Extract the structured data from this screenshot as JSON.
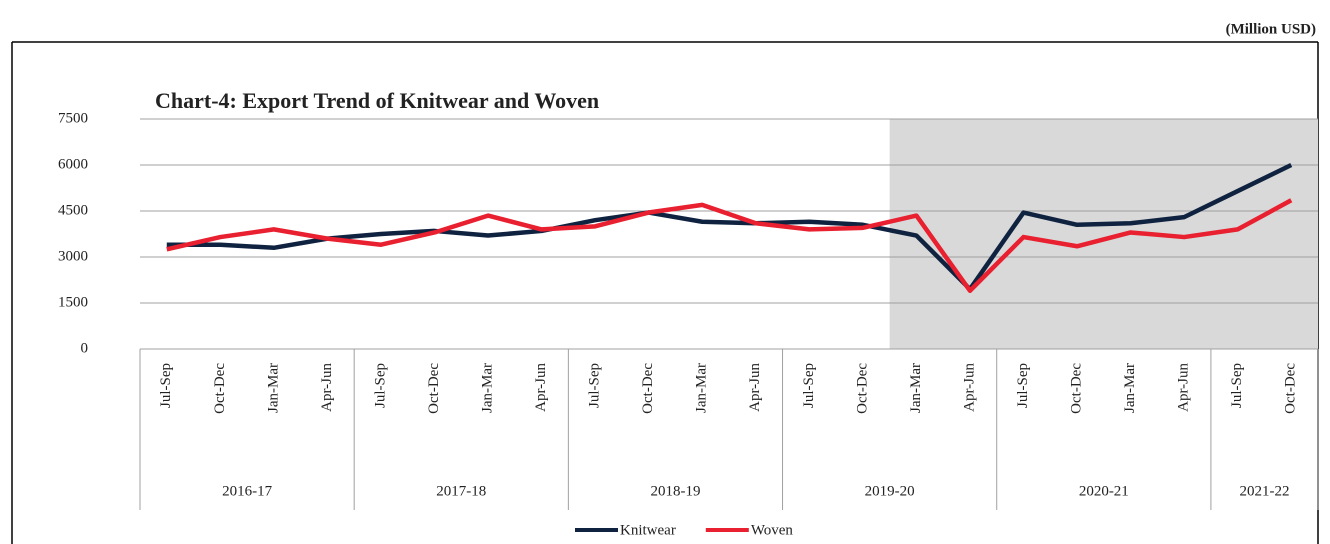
{
  "chart_data": {
    "type": "line",
    "unit_note": "(Million USD)",
    "title": "Chart-4: Export Trend of Knitwear and Woven",
    "categories": [
      "Jul-Sep",
      "Oct-Dec",
      "Jan-Mar",
      "Apr-Jun",
      "Jul-Sep",
      "Oct-Dec",
      "Jan-Mar",
      "Apr-Jun",
      "Jul-Sep",
      "Oct-Dec",
      "Jan-Mar",
      "Apr-Jun",
      "Jul-Sep",
      "Oct-Dec",
      "Jan-Mar",
      "Apr-Jun",
      "Jul-Sep",
      "Oct-Dec",
      "Jan-Mar",
      "Apr-Jun",
      "Jul-Sep",
      "Oct-Dec"
    ],
    "groups": [
      {
        "label": "2016-17",
        "span": 4
      },
      {
        "label": "2017-18",
        "span": 4
      },
      {
        "label": "2018-19",
        "span": 4
      },
      {
        "label": "2019-20",
        "span": 4
      },
      {
        "label": "2020-21",
        "span": 4
      },
      {
        "label": "2021-22",
        "span": 2
      }
    ],
    "series": [
      {
        "name": "Knitwear",
        "color": "#0f2341",
        "values": [
          3400,
          3400,
          3300,
          3600,
          3750,
          3850,
          3700,
          3850,
          4200,
          4450,
          4150,
          4100,
          4150,
          4050,
          3700,
          1950,
          4450,
          4050,
          4100,
          4300,
          5150,
          6000
        ]
      },
      {
        "name": "Woven",
        "color": "#e8202f",
        "values": [
          3250,
          3650,
          3900,
          3600,
          3400,
          3800,
          4350,
          3900,
          4000,
          4450,
          4700,
          4100,
          3900,
          3950,
          4350,
          1900,
          3650,
          3350,
          3800,
          3650,
          3900,
          4850
        ]
      }
    ],
    "ylim": [
      0,
      7500
    ],
    "yticks": [
      0,
      1500,
      3000,
      4500,
      6000,
      7500
    ],
    "grid": true,
    "highlight": {
      "from": 14,
      "to": 21,
      "color": "#d9d9d9"
    },
    "legend": "bottom"
  }
}
